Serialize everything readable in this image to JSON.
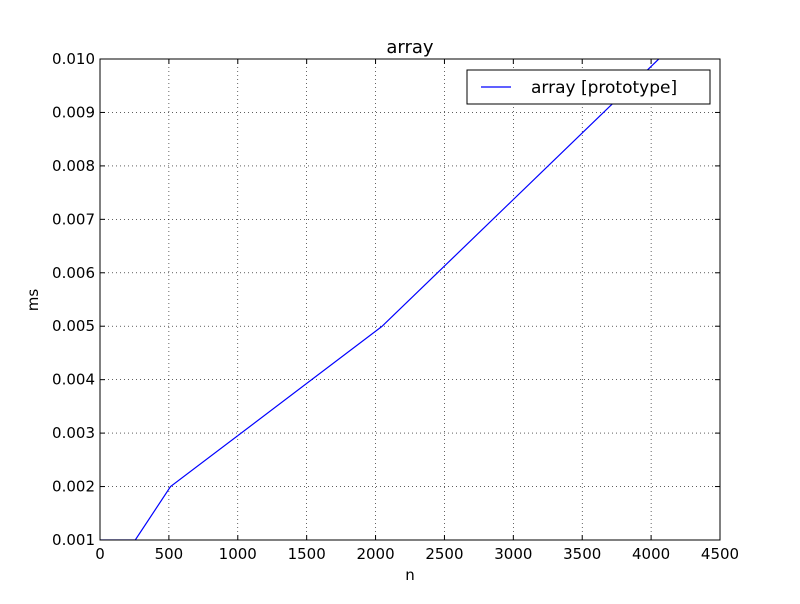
{
  "chart_data": {
    "type": "line",
    "title": "array",
    "xlabel": "n",
    "ylabel": "ms",
    "xlim": [
      0,
      4500
    ],
    "ylim": [
      0.001,
      0.01
    ],
    "x_ticks": [
      0,
      500,
      1000,
      1500,
      2000,
      2500,
      3000,
      3500,
      4000,
      4500
    ],
    "x_tick_labels": [
      "0",
      "500",
      "1000",
      "1500",
      "2000",
      "2500",
      "3000",
      "3500",
      "4000",
      "4500"
    ],
    "y_ticks": [
      0.001,
      0.002,
      0.003,
      0.004,
      0.005,
      0.006,
      0.007,
      0.008,
      0.009,
      0.01
    ],
    "y_tick_labels": [
      "0.001",
      "0.002",
      "0.003",
      "0.004",
      "0.005",
      "0.006",
      "0.007",
      "0.008",
      "0.009",
      "0.010"
    ],
    "grid": true,
    "legend_position": "top-right",
    "series": [
      {
        "name": "array [prototype]",
        "color": "#0000ff",
        "x": [
          0,
          256,
          512,
          2048,
          4096
        ],
        "y": [
          0.001,
          0.001,
          0.002,
          0.005,
          0.0101
        ]
      }
    ]
  }
}
